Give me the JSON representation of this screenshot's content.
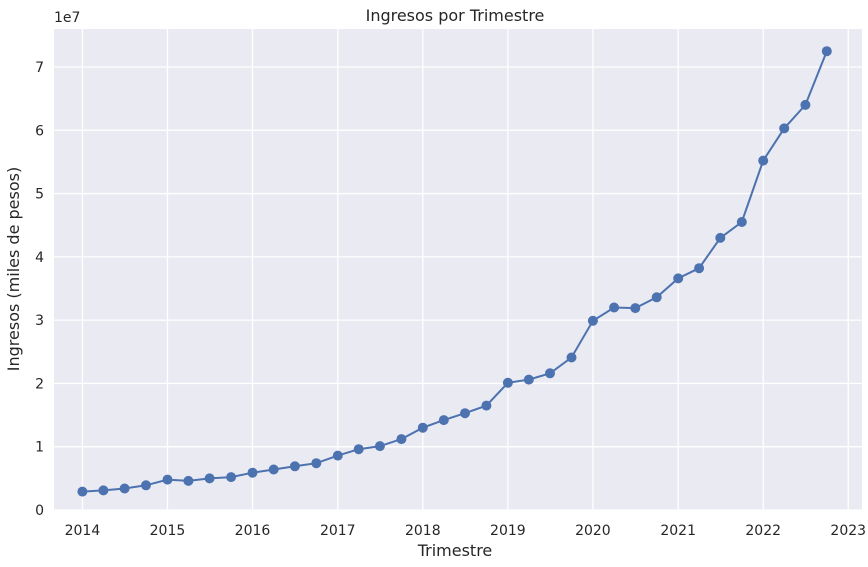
{
  "chart_data": {
    "type": "line",
    "title": "Ingresos por Trimestre",
    "xlabel": "Trimestre",
    "ylabel": "Ingresos (miles de pesos)",
    "y_offset_label": "1e7",
    "xlim": [
      "2013-09-01",
      "2023-03-01"
    ],
    "ylim": [
      0,
      7.6
    ],
    "x_tick_labels": [
      "2014",
      "2015",
      "2016",
      "2017",
      "2018",
      "2019",
      "2020",
      "2021",
      "2022",
      "2023"
    ],
    "y_tick_labels": [
      "0",
      "1",
      "2",
      "3",
      "4",
      "5",
      "6",
      "7"
    ],
    "grid": true,
    "style": "seaborn-darkgrid",
    "colors": {
      "background": "#eaeaf2",
      "grid": "#ffffff",
      "line": "#4c72b0",
      "text": "#262626"
    },
    "series": [
      {
        "x": [
          "2014-01-01",
          "2014-04-01",
          "2014-07-01",
          "2014-10-01",
          "2015-01-01",
          "2015-04-01",
          "2015-07-01",
          "2015-10-01",
          "2016-01-01",
          "2016-04-01",
          "2016-07-01",
          "2016-10-01",
          "2017-01-01",
          "2017-04-01",
          "2017-07-01",
          "2017-10-01",
          "2018-01-01",
          "2018-04-01",
          "2018-07-01",
          "2018-10-01",
          "2019-01-01",
          "2019-04-01",
          "2019-07-01",
          "2019-10-01",
          "2020-01-01",
          "2020-04-01",
          "2020-07-01",
          "2020-10-01",
          "2021-01-01",
          "2021-04-01",
          "2021-07-01",
          "2021-10-01",
          "2022-01-01",
          "2022-04-01",
          "2022-07-01",
          "2022-10-01"
        ],
        "values": [
          0.29,
          0.31,
          0.34,
          0.39,
          0.48,
          0.46,
          0.5,
          0.52,
          0.59,
          0.64,
          0.69,
          0.74,
          0.86,
          0.96,
          1.01,
          1.12,
          1.3,
          1.42,
          1.53,
          1.65,
          2.01,
          2.06,
          2.16,
          2.41,
          2.99,
          3.2,
          3.19,
          3.36,
          3.66,
          3.82,
          4.3,
          4.55,
          5.52,
          6.03,
          6.4,
          7.25
        ]
      }
    ]
  }
}
